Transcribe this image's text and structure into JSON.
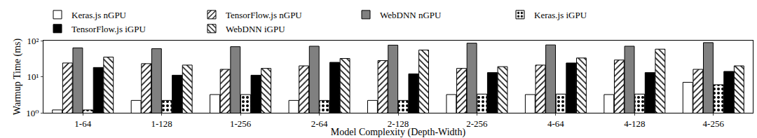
{
  "chart_data": {
    "type": "bar",
    "xlabel": "Model Complexity (Depth-Width)",
    "ylabel": "Warmup Time (ms)",
    "categories": [
      "1-64",
      "1-128",
      "1-256",
      "2-64",
      "2-128",
      "2-256",
      "4-64",
      "4-128",
      "4-256"
    ],
    "series": [
      {
        "name": "Keras.js nGPU",
        "color": "#ffffff",
        "marker": "solid",
        "values": [
          1.2,
          2.2,
          3.2,
          2.2,
          2.2,
          3.2,
          3.2,
          3.2,
          7
        ]
      },
      {
        "name": "TensorFlow.js nGPU",
        "color": "#ffffff",
        "marker": "hatch",
        "values": [
          24,
          23,
          16,
          20,
          28,
          17,
          21,
          29,
          16
        ]
      },
      {
        "name": "WebDNN nGPU",
        "color": "#808080",
        "marker": "solid",
        "values": [
          63,
          60,
          68,
          70,
          75,
          85,
          76,
          70,
          88
        ]
      },
      {
        "name": "Keras.js iGPU",
        "color": "#ffffff",
        "marker": "dots",
        "values": [
          1.2,
          2.2,
          3.2,
          2.2,
          2.2,
          3.3,
          3.3,
          3.3,
          6
        ]
      },
      {
        "name": "TensorFlow.js iGPU",
        "color": "#000000",
        "marker": "solid",
        "values": [
          18,
          11,
          11,
          25,
          12,
          13,
          24,
          13,
          14
        ]
      },
      {
        "name": "WebDNN iGPU",
        "color": "#ffffff",
        "marker": "backhatch",
        "values": [
          35,
          21,
          17,
          32,
          55,
          19,
          33,
          58,
          20
        ]
      }
    ],
    "log": "y",
    "ylim": [
      1,
      100
    ],
    "yticks": [
      {
        "value": 1,
        "label": "10⁰"
      },
      {
        "value": 10,
        "label": "10¹"
      },
      {
        "value": 100,
        "label": "10²"
      }
    ],
    "grid": false,
    "legend": "top"
  }
}
